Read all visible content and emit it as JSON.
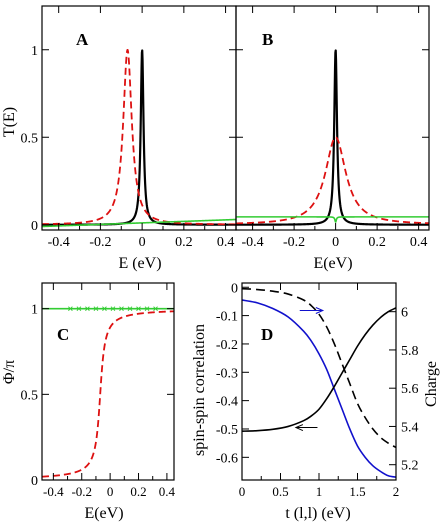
{
  "chart_data": [
    {
      "panel": "A",
      "type": "line",
      "xlabel": "E (eV)",
      "ylabel": "T(E)",
      "xlim": [
        -0.48,
        0.45
      ],
      "ylim": [
        -0.03,
        1.25
      ],
      "xticks": [
        "-0.4",
        "-0.2",
        "0",
        "0.2",
        "0.4"
      ],
      "xtick_values": [
        -0.4,
        -0.2,
        0,
        0.2,
        0.4
      ],
      "yticks": [
        "0",
        "0.5",
        "1"
      ],
      "ytick_values": [
        0,
        0.5,
        1
      ],
      "series": [
        {
          "color": "#000000",
          "dash": "solid",
          "width": 2.2,
          "shape": "lorentz",
          "center": 0.0,
          "height": 1.0,
          "gamma": 0.008
        },
        {
          "color": "#dd1111",
          "dash": "dashed",
          "width": 1.8,
          "shape": "lorentz",
          "center": -0.07,
          "height": 1.0,
          "gamma": 0.025
        },
        {
          "color": "#33cc33",
          "dash": "solid",
          "width": 1.6,
          "shape": "linear",
          "start": -0.01,
          "end": 0.03
        }
      ]
    },
    {
      "panel": "B",
      "type": "line",
      "xlabel": "E(eV)",
      "ylabel": "",
      "xlim": [
        -0.48,
        0.45
      ],
      "ylim": [
        -0.03,
        1.25
      ],
      "xticks": [
        "-0.4",
        "-0.2",
        "0",
        "0.2",
        "0.4"
      ],
      "xtick_values": [
        -0.4,
        -0.2,
        0,
        0.2,
        0.4
      ],
      "yticks": [],
      "ytick_values": [
        0,
        0.5,
        1
      ],
      "series": [
        {
          "color": "#000000",
          "dash": "solid",
          "width": 2.2,
          "shape": "lorentz",
          "center": 0.0,
          "height": 1.0,
          "gamma": 0.008
        },
        {
          "color": "#dd1111",
          "dash": "dashed",
          "width": 1.8,
          "shape": "lorentz",
          "center": 0.0,
          "height": 0.5,
          "gamma": 0.06
        },
        {
          "color": "#33cc33",
          "dash": "solid",
          "width": 1.6,
          "shape": "flat_dip",
          "level": 0.045,
          "dip_center": 0.0,
          "dip_depth": 0.03
        }
      ]
    },
    {
      "panel": "C",
      "type": "line",
      "xlabel": "E(eV)",
      "ylabel": "Φ/π",
      "xlim": [
        -0.48,
        0.45
      ],
      "ylim": [
        0,
        1.15
      ],
      "xticks": [
        "-0.4",
        "-0.2",
        "0",
        "0.2",
        "0.4"
      ],
      "xtick_values": [
        -0.4,
        -0.2,
        0,
        0.2,
        0.4
      ],
      "yticks": [
        "0",
        "0.5",
        "1"
      ],
      "ytick_values": [
        0,
        0.5,
        1
      ],
      "series": [
        {
          "color": "#dd1111",
          "dash": "dashed",
          "width": 1.8,
          "shape": "phase",
          "center": -0.07,
          "gamma": 0.025
        },
        {
          "color": "#33cc33",
          "dash": "solid",
          "width": 1.6,
          "shape": "const",
          "level": 1.0
        },
        {
          "color": "#33cc33",
          "dash": "solid",
          "width": 1.0,
          "shape": "markers",
          "level": 1.0,
          "x": [
            -0.28,
            -0.22,
            -0.16,
            -0.1,
            -0.04,
            0.02,
            0.08,
            0.14,
            0.2,
            0.26,
            0.32
          ]
        }
      ]
    },
    {
      "panel": "D",
      "type": "line",
      "xlabel": "t (l,l) (eV)",
      "ylabel": "spin-spin correlation",
      "ylabel_right": "Charge",
      "xlim": [
        0,
        2
      ],
      "ylim": [
        -0.68,
        0.015
      ],
      "ylim_right": [
        5.12,
        6.15
      ],
      "xticks": [
        "0",
        "0.5",
        "1",
        "1.5",
        "2"
      ],
      "xtick_values": [
        0,
        0.5,
        1,
        1.5,
        2
      ],
      "yticks": [
        "0",
        "-0.1",
        "-0.2",
        "-0.3",
        "-0.4",
        "-0.5",
        "-0.6"
      ],
      "ytick_values": [
        0,
        -0.1,
        -0.2,
        -0.3,
        -0.4,
        -0.5,
        -0.6
      ],
      "yticks_right": [
        "6",
        "5.8",
        "5.6",
        "5.4",
        "5.2"
      ],
      "ytick_values_right": [
        6,
        5.8,
        5.6,
        5.4,
        5.2
      ],
      "series": [
        {
          "color": "#000000",
          "dash": "dashed",
          "width": 1.6,
          "axis": "left",
          "x": [
            0,
            0.2,
            0.4,
            0.6,
            0.8,
            0.9,
            1.0,
            1.1,
            1.2,
            1.3,
            1.4,
            1.5,
            1.6,
            1.7,
            1.8,
            1.9,
            2.0
          ],
          "y": [
            -0.005,
            -0.008,
            -0.014,
            -0.024,
            -0.045,
            -0.065,
            -0.095,
            -0.14,
            -0.2,
            -0.27,
            -0.34,
            -0.41,
            -0.46,
            -0.5,
            -0.53,
            -0.55,
            -0.565
          ]
        },
        {
          "color": "#1111cc",
          "dash": "solid",
          "width": 1.6,
          "axis": "left",
          "x": [
            0,
            0.2,
            0.4,
            0.6,
            0.8,
            0.9,
            1.0,
            1.1,
            1.2,
            1.3,
            1.4,
            1.5,
            1.6,
            1.7,
            1.8,
            1.9,
            2.0
          ],
          "y": [
            -0.045,
            -0.055,
            -0.075,
            -0.105,
            -0.155,
            -0.19,
            -0.235,
            -0.29,
            -0.36,
            -0.43,
            -0.5,
            -0.56,
            -0.6,
            -0.63,
            -0.65,
            -0.665,
            -0.67
          ]
        },
        {
          "color": "#000000",
          "dash": "solid",
          "width": 1.6,
          "axis": "right",
          "x": [
            0,
            0.2,
            0.4,
            0.6,
            0.8,
            0.9,
            1.0,
            1.1,
            1.2,
            1.3,
            1.4,
            1.5,
            1.6,
            1.7,
            1.8,
            1.9,
            2.0
          ],
          "y": [
            5.375,
            5.378,
            5.385,
            5.4,
            5.43,
            5.455,
            5.49,
            5.545,
            5.61,
            5.68,
            5.75,
            5.82,
            5.88,
            5.93,
            5.97,
            6.0,
            6.02
          ]
        }
      ],
      "annotations": [
        {
          "type": "arrow",
          "color": "#000000",
          "direction": "left",
          "x": [
            0.7,
            0.98
          ],
          "y": -0.495
        },
        {
          "type": "arrow",
          "color": "#1111cc",
          "direction": "right",
          "x": [
            0.75,
            1.05
          ],
          "y": -0.082
        }
      ]
    }
  ]
}
